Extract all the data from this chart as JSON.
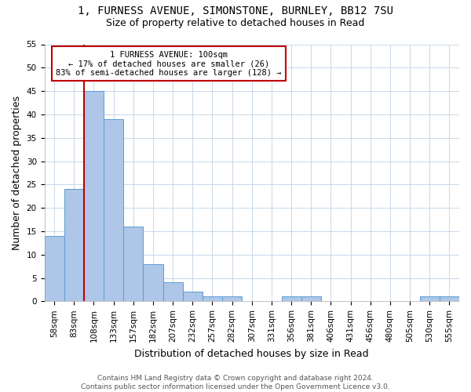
{
  "title": "1, FURNESS AVENUE, SIMONSTONE, BURNLEY, BB12 7SU",
  "subtitle": "Size of property relative to detached houses in Read",
  "xlabel": "Distribution of detached houses by size in Read",
  "ylabel": "Number of detached properties",
  "footnote1": "Contains HM Land Registry data © Crown copyright and database right 2024.",
  "footnote2": "Contains public sector information licensed under the Open Government Licence v3.0.",
  "annotation_line1": "1 FURNESS AVENUE: 100sqm",
  "annotation_line2": "← 17% of detached houses are smaller (26)",
  "annotation_line3": "83% of semi-detached houses are larger (128) →",
  "bar_labels": [
    "58sqm",
    "83sqm",
    "108sqm",
    "133sqm",
    "157sqm",
    "182sqm",
    "207sqm",
    "232sqm",
    "257sqm",
    "282sqm",
    "307sqm",
    "331sqm",
    "356sqm",
    "381sqm",
    "406sqm",
    "431sqm",
    "456sqm",
    "480sqm",
    "505sqm",
    "530sqm",
    "555sqm"
  ],
  "bar_values": [
    14,
    24,
    45,
    39,
    16,
    8,
    4,
    2,
    1,
    1,
    0,
    0,
    1,
    1,
    0,
    0,
    0,
    0,
    0,
    1,
    1
  ],
  "bar_color": "#aec6e8",
  "bar_edge_color": "#5b9bd5",
  "vline_between": 1,
  "vline_color": "#c00000",
  "ylim": [
    0,
    55
  ],
  "yticks": [
    0,
    5,
    10,
    15,
    20,
    25,
    30,
    35,
    40,
    45,
    50,
    55
  ],
  "bg_color": "#ffffff",
  "grid_color": "#c8d8e8",
  "annotation_box_color": "#c00000",
  "title_fontsize": 10,
  "subtitle_fontsize": 9,
  "annotation_fontsize": 7.5,
  "axis_label_fontsize": 9,
  "tick_fontsize": 7.5,
  "footnote_fontsize": 6.5
}
